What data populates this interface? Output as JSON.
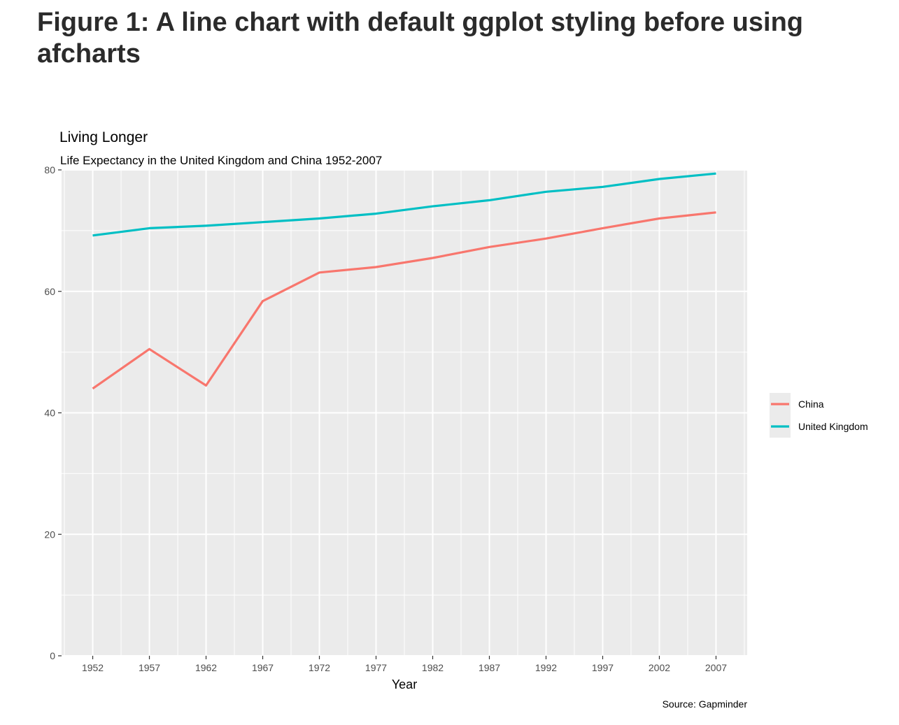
{
  "figure_caption": "Figure 1: A line chart with default ggplot styling before using afcharts",
  "chart_data": {
    "type": "line",
    "title": "Living Longer",
    "subtitle": "Life Expectancy in the United Kingdom and China 1952-2007",
    "xlabel": "Year",
    "ylabel": "",
    "caption": "Source: Gapminder",
    "x": [
      1952,
      1957,
      1962,
      1967,
      1972,
      1977,
      1982,
      1987,
      1992,
      1997,
      2002,
      2007
    ],
    "xlim": [
      1949.25,
      2009.75
    ],
    "ylim": [
      0,
      80
    ],
    "x_ticks": [
      1952,
      1957,
      1962,
      1967,
      1972,
      1977,
      1982,
      1987,
      1992,
      1997,
      2002,
      2007
    ],
    "y_ticks": [
      0,
      20,
      40,
      60,
      80
    ],
    "grid": true,
    "legend_position": "right",
    "panel_background": "#ebebeb",
    "series": [
      {
        "name": "China",
        "color": "#f8766d",
        "values": [
          44.0,
          50.5,
          44.5,
          58.4,
          63.1,
          64.0,
          65.5,
          67.3,
          68.7,
          70.4,
          72.0,
          73.0
        ]
      },
      {
        "name": "United Kingdom",
        "color": "#00bfc4",
        "values": [
          69.2,
          70.4,
          70.8,
          71.4,
          72.0,
          72.8,
          74.0,
          75.0,
          76.4,
          77.2,
          78.5,
          79.4
        ]
      }
    ]
  }
}
